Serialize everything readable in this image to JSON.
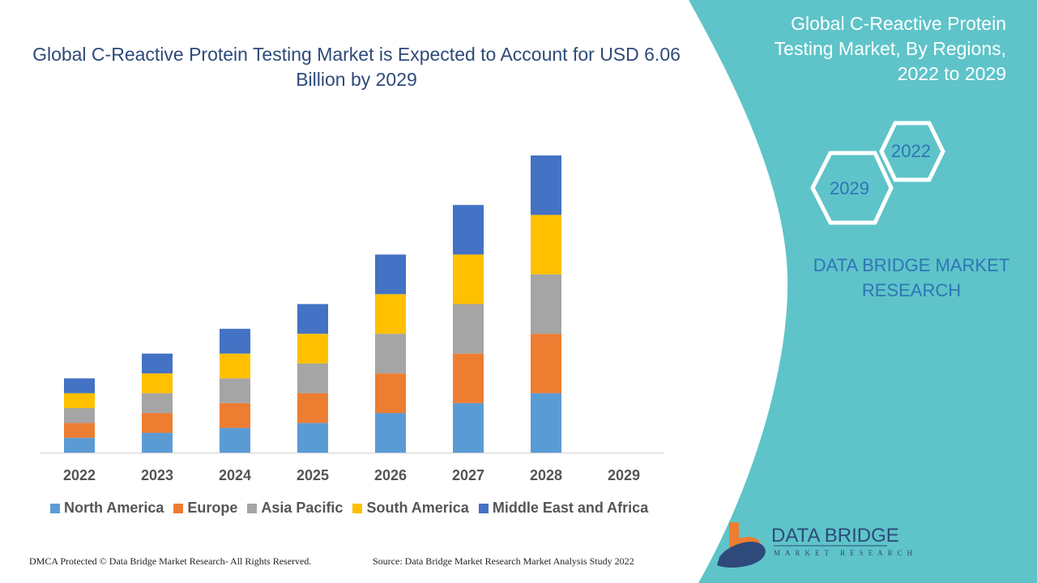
{
  "chart_data": {
    "type": "bar",
    "stacked": true,
    "title": "Global C-Reactive Protein Testing Market is Expected to Account for USD 6.06 Billion by 2029",
    "categories": [
      "2022",
      "2023",
      "2024",
      "2025",
      "2026",
      "2027",
      "2028",
      "2029"
    ],
    "series": [
      {
        "name": "North America",
        "color": "#5b9bd5",
        "values": [
          3,
          4,
          5,
          6,
          8,
          10,
          12,
          0
        ]
      },
      {
        "name": "Europe",
        "color": "#ed7d31",
        "values": [
          3,
          4,
          5,
          6,
          8,
          10,
          12,
          0
        ]
      },
      {
        "name": "Asia Pacific",
        "color": "#a5a5a5",
        "values": [
          3,
          4,
          5,
          6,
          8,
          10,
          12,
          0
        ]
      },
      {
        "name": "South America",
        "color": "#ffc000",
        "values": [
          3,
          4,
          5,
          6,
          8,
          10,
          12,
          0
        ]
      },
      {
        "name": "Middle East and Africa",
        "color": "#4472c4",
        "values": [
          3,
          4,
          5,
          6,
          8,
          10,
          12,
          0
        ]
      }
    ],
    "xlabel": "",
    "ylabel": "",
    "ylim": [
      0,
      60
    ],
    "grid": false,
    "legend": "bottom",
    "units": "relative index (no y-axis shown)"
  },
  "side": {
    "title": "Global C-Reactive Protein Testing Market, By Regions, 2022 to 2029",
    "hex_start": "2022",
    "hex_end": "2029",
    "brand": "DATA BRIDGE MARKET RESEARCH",
    "panel_color": "#5ec4c9"
  },
  "logo": {
    "name": "DATA BRIDGE",
    "tagline": "MARKET RESEARCH"
  },
  "footer": {
    "copyright": "DMCA Protected © Data Bridge Market Research- All Rights Reserved.",
    "source": "Source: Data Bridge Market Research Market Analysis Study 2022"
  }
}
